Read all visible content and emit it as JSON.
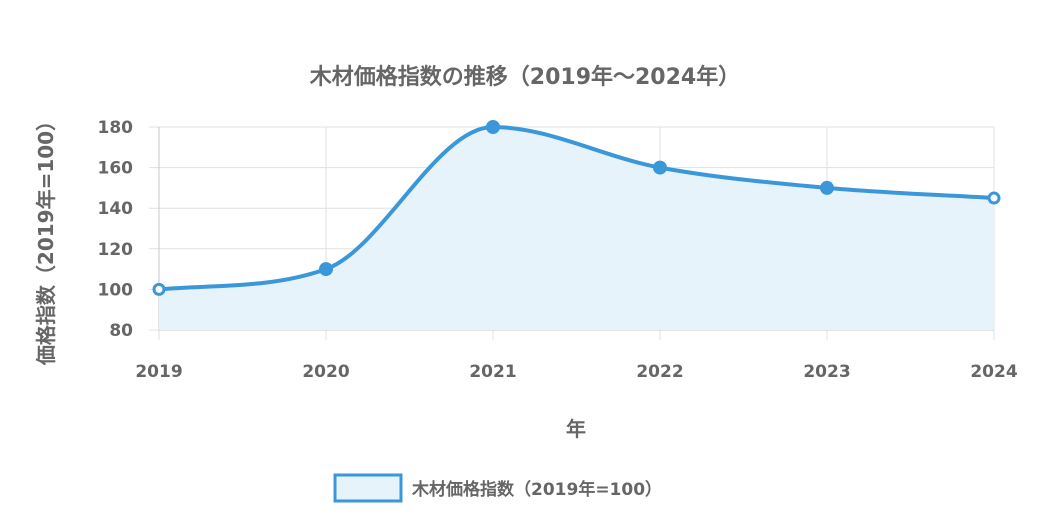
{
  "chart_data": {
    "type": "line",
    "title": "木材価格指数の推移（2019年〜2024年）",
    "xlabel": "年",
    "ylabel": "価格指数（2019年=100）",
    "categories": [
      "2019",
      "2020",
      "2021",
      "2022",
      "2023",
      "2024"
    ],
    "series": [
      {
        "name": "木材価格指数（2019年=100）",
        "values": [
          100,
          110,
          180,
          160,
          150,
          145
        ],
        "color": "#3a97d9",
        "fill": "#e7f3fb"
      }
    ],
    "yticks": [
      "80",
      "100",
      "120",
      "140",
      "160",
      "180"
    ],
    "ylim": [
      80,
      180
    ],
    "grid": true,
    "legend_position": "bottom",
    "area_fill": true,
    "smooth": true
  }
}
